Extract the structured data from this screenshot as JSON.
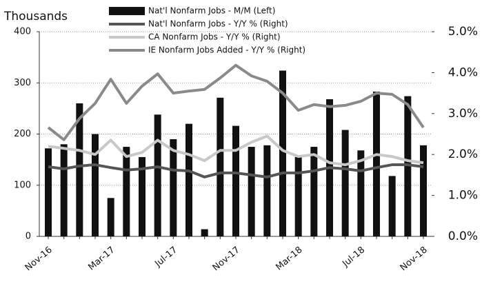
{
  "chart_data": {
    "type": "bar",
    "y_label": "Thousands",
    "categories": [
      "Nov-16",
      null,
      null,
      null,
      "Mar-17",
      null,
      null,
      null,
      "Jul-17",
      null,
      null,
      null,
      "Nov-17",
      null,
      null,
      null,
      "Mar-18",
      null,
      null,
      null,
      "Jul-18",
      null,
      null,
      null,
      "Nov-18"
    ],
    "series": [
      {
        "name": "Nat'l Nonfarm Jobs - M/M (Left)",
        "color": "#111111",
        "values": [
          172,
          180,
          260,
          200,
          75,
          175,
          155,
          238,
          190,
          220,
          14,
          271,
          216,
          175,
          178,
          324,
          155,
          175,
          268,
          208,
          168,
          283,
          118,
          274,
          178
        ]
      },
      {
        "name": "Nat'l Nonfarm Jobs - Y/Y % (Right)",
        "color": "#555555",
        "axis": "y2",
        "values": [
          1.7,
          1.65,
          1.72,
          1.75,
          1.68,
          1.62,
          1.65,
          1.7,
          1.62,
          1.6,
          1.45,
          1.55,
          1.55,
          1.5,
          1.45,
          1.55,
          1.55,
          1.6,
          1.68,
          1.65,
          1.6,
          1.68,
          1.75,
          1.75,
          1.7
        ]
      },
      {
        "name": "CA Nonfarm Jobs - Y/Y % (Right)",
        "color": "#c8c8c8",
        "axis": "y2",
        "values": [
          2.2,
          2.15,
          2.1,
          2.0,
          2.35,
          1.95,
          2.05,
          2.35,
          2.1,
          2.0,
          1.85,
          2.1,
          2.1,
          2.3,
          2.45,
          2.1,
          1.95,
          2.0,
          1.8,
          1.75,
          1.85,
          2.0,
          1.95,
          1.85,
          1.8
        ]
      },
      {
        "name": "IE Nonfarm Jobs Added - Y/Y % (Right)",
        "color": "#8a8a8a",
        "axis": "y2",
        "values": [
          2.66,
          2.36,
          2.88,
          3.25,
          3.84,
          3.25,
          3.67,
          3.97,
          3.5,
          3.55,
          3.59,
          3.87,
          4.18,
          3.92,
          3.79,
          3.5,
          3.08,
          3.22,
          3.17,
          3.2,
          3.3,
          3.5,
          3.47,
          3.22,
          2.66
        ]
      }
    ],
    "ylim": [
      0,
      400
    ],
    "yticks": [
      0,
      100,
      200,
      300,
      400
    ],
    "y2lim": [
      0,
      5
    ],
    "y2ticks": [
      {
        "value": 0,
        "label": "0.0%"
      },
      {
        "value": 1,
        "label": "1.0%"
      },
      {
        "value": 2,
        "label": "2.0%"
      },
      {
        "value": 3,
        "label": "3.0%"
      },
      {
        "value": 4,
        "label": "4.0%"
      },
      {
        "value": 5,
        "label": "5.0%"
      }
    ],
    "grid": true
  }
}
